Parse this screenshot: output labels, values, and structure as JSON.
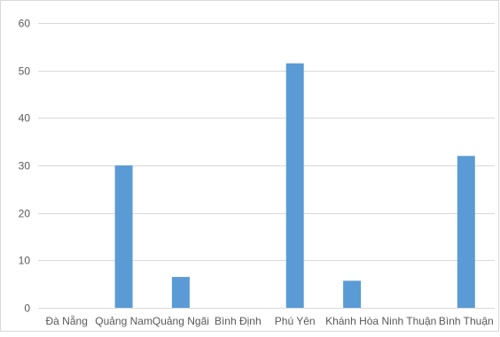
{
  "chart_data": {
    "type": "bar",
    "title": "",
    "xlabel": "",
    "ylabel": "",
    "categories": [
      "Đà Nẵng",
      "Quảng Nam",
      "Quảng Ngãi",
      "Bình Định",
      "Phú Yên",
      "Khánh Hòa",
      "Ninh Thuận",
      "Bình Thuận"
    ],
    "values": [
      0,
      30,
      6.5,
      0,
      51.5,
      5.7,
      0,
      32
    ],
    "ylim": [
      0,
      60
    ],
    "yticks": [
      "0",
      "10",
      "20",
      "30",
      "40",
      "50",
      "60"
    ],
    "grid": true,
    "legend": "none",
    "bar_color": "#5b9bd5",
    "grid_color": "#d9d9d9"
  }
}
